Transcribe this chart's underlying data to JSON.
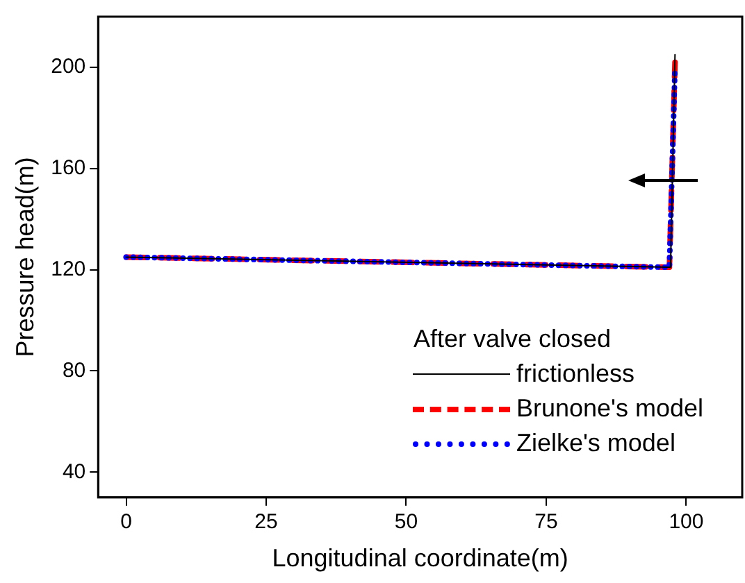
{
  "chart_data": {
    "type": "line",
    "xlabel": "Longitudinal coordinate(m)",
    "ylabel": "Pressure head(m)",
    "legend_title": "After valve closed",
    "legend": "bottom right",
    "xlim": [
      -5,
      110
    ],
    "xticks": [
      0,
      25,
      50,
      75,
      100
    ],
    "ylim": [
      30,
      220
    ],
    "yticks": [
      40,
      80,
      120,
      160,
      200
    ],
    "grid": false,
    "series": [
      {
        "name": "frictionless",
        "color": "#000000",
        "line_style": "solid",
        "x": [
          0,
          97,
          97.2,
          98
        ],
        "values": [
          125,
          121,
          121,
          205
        ]
      },
      {
        "name": "Brunone's model",
        "color": "#ff0000",
        "line_style": "dashed",
        "x": [
          0,
          96.5,
          97,
          98
        ],
        "values": [
          125,
          121,
          121,
          202
        ]
      },
      {
        "name": "Zielke's model",
        "color": "#0000ff",
        "line_style": "dotted",
        "x": [
          0,
          96,
          97,
          98
        ],
        "values": [
          125,
          121,
          121,
          200
        ]
      }
    ]
  }
}
